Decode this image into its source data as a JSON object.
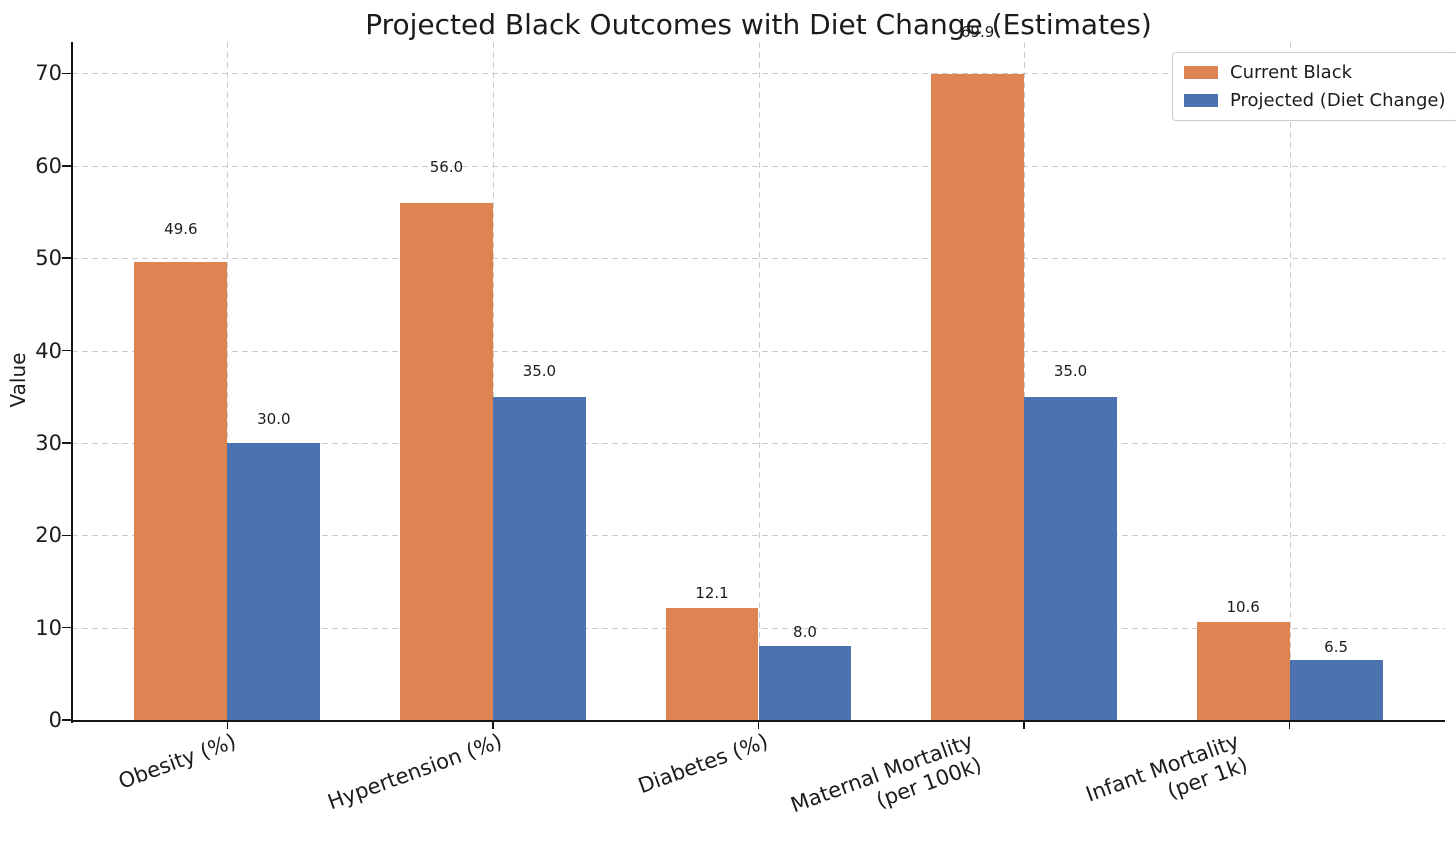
{
  "chart_data": {
    "type": "bar",
    "title": "Projected Black Outcomes with Diet Change (Estimates)",
    "ylabel": "Value",
    "xlabel": "",
    "categories": [
      "Obesity (%)",
      "Hypertension (%)",
      "Diabetes (%)",
      "Maternal Mortality\n(per 100k)",
      "Infant Mortality\n(per 1k)"
    ],
    "series": [
      {
        "name": "Current Black",
        "color": "#DD8452",
        "values": [
          49.6,
          56.0,
          12.1,
          69.9,
          10.6
        ],
        "labels": [
          "49.6",
          "56.0",
          "12.1",
          "69.9",
          "10.6"
        ]
      },
      {
        "name": "Projected (Diet Change)",
        "color": "#4C72B0",
        "values": [
          30.0,
          35.0,
          8.0,
          35.0,
          6.5
        ],
        "labels": [
          "30.0",
          "35.0",
          "8.0",
          "35.0",
          "6.5"
        ]
      }
    ],
    "ylim": [
      0,
      73.4
    ],
    "yticks": [
      0,
      10,
      20,
      30,
      40,
      50,
      60,
      70
    ],
    "bar_width": 0.35,
    "grid": {
      "which": "both",
      "style": "dashed",
      "color": "#CCCCCC"
    },
    "legend": {
      "position": "upper right"
    },
    "xtick_rotation_deg": 20,
    "value_label_y_factor": 1.05,
    "background": "#FFFFFF",
    "text_color": "#1C1C1C"
  }
}
